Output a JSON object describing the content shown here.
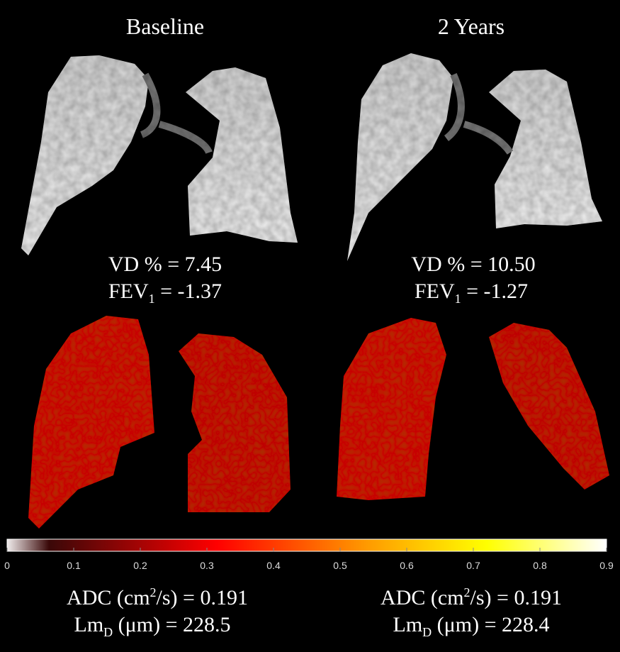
{
  "panels": [
    {
      "title": "Baseline",
      "vd": "VD % = 7.45",
      "fev": {
        "text": "FEV",
        "sub": "1",
        "rest": " = -1.37"
      },
      "adc": {
        "text": "ADC (cm",
        "sup": "2",
        "rest": "/s) = 0.191"
      },
      "lm": {
        "text": "Lm",
        "sub": "D",
        "rest": " (μm) = 228.5"
      }
    },
    {
      "title": "2 Years",
      "vd": "VD % = 10.50",
      "fev": {
        "text": "FEV",
        "sub": "1",
        "rest": " = -1.27"
      },
      "adc": {
        "text": "ADC (cm",
        "sup": "2",
        "rest": "/s) = 0.191"
      },
      "lm": {
        "text": "Lm",
        "sub": "D",
        "rest": " (μm) = 228.4"
      }
    }
  ],
  "colorbar": {
    "range": [
      0,
      0.9
    ],
    "ticks": [
      0,
      0.1,
      0.2,
      0.3,
      0.4,
      0.5,
      0.6,
      0.7,
      0.8,
      0.9
    ]
  }
}
